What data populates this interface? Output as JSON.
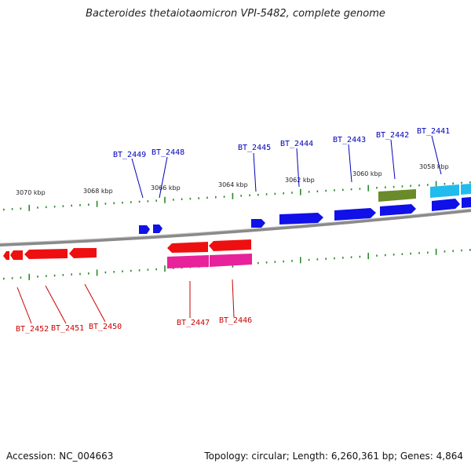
{
  "title": "Bacteroides thetaiotaomicron VPI-5482, complete genome",
  "footer": {
    "accession": "Accession: NC_004663",
    "summary": "Topology: circular; Length: 6,260,361 bp; Genes: 4,864"
  },
  "colors": {
    "forward_gene": "#1010e8",
    "reverse_gene": "#ee1010",
    "reverse_feature_pink": "#e8229a",
    "olive_feature": "#6b8a2a",
    "cyan_feature": "#22bbee",
    "tick": "#2a8a2a",
    "label_forward": "#0000bb",
    "label_reverse": "#cc0000",
    "backbone": "#888888"
  },
  "scale_labels": [
    "3070 kbp",
    "3068 kbp",
    "3066 kbp",
    "3064 kbp",
    "3062 kbp",
    "3060 kbp",
    "3058 kbp"
  ],
  "gene_labels_forward": [
    "BT_2449",
    "BT_2448",
    "BT_2445",
    "BT_2444",
    "BT_2443",
    "BT_2442",
    "BT_2441"
  ],
  "gene_labels_reverse": [
    "BT_2452",
    "BT_2451",
    "BT_2450",
    "BT_2447",
    "BT_2446"
  ]
}
